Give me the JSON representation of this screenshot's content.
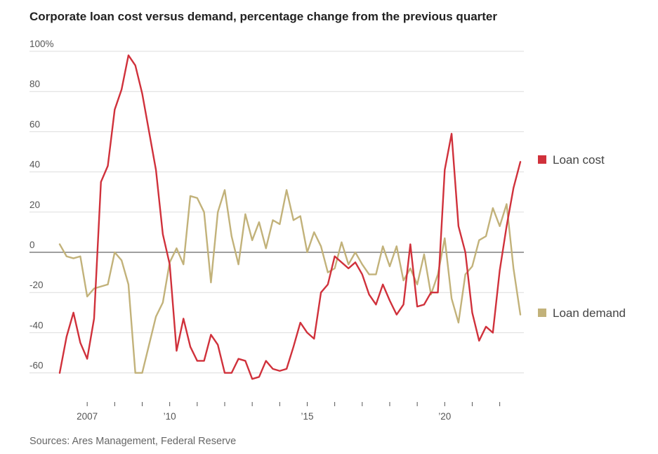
{
  "title": "Corporate loan cost versus demand, percentage change from the previous quarter",
  "source": "Sources: Ares Management, Federal Reserve",
  "colors": {
    "loan_cost": "#d0313b",
    "loan_demand": "#c2b27a",
    "grid": "#dddddd",
    "zero": "#666666"
  },
  "chart_data": {
    "type": "line",
    "title": "Corporate loan cost versus demand, percentage change from the previous quarter",
    "ylim": [
      -70,
      100
    ],
    "y_ticks": [
      100,
      80,
      60,
      40,
      20,
      0,
      -20,
      -40,
      -60
    ],
    "y_tick_labels": [
      "100%",
      "80",
      "60",
      "40",
      "20",
      "0",
      "-20",
      "-40",
      "-60"
    ],
    "x_tick_labels": [
      {
        "x": 2007.0,
        "label": "2007"
      },
      {
        "x": 2010.0,
        "label": "’10"
      },
      {
        "x": 2015.0,
        "label": "’15"
      },
      {
        "x": 2020.0,
        "label": "’20"
      }
    ],
    "x_minor_ticks": [
      2008,
      2009,
      2011,
      2012,
      2013,
      2014,
      2016,
      2017,
      2018,
      2019,
      2021,
      2022
    ],
    "xlim": [
      2005.0,
      2023.0
    ],
    "grid": true,
    "legend_position": "right",
    "series": [
      {
        "name": "Loan cost",
        "x": [
          2006.0,
          2006.25,
          2006.5,
          2006.75,
          2007.0,
          2007.25,
          2007.5,
          2007.75,
          2008.0,
          2008.25,
          2008.5,
          2008.75,
          2009.0,
          2009.25,
          2009.5,
          2009.75,
          2010.0,
          2010.25,
          2010.5,
          2010.75,
          2011.0,
          2011.25,
          2011.5,
          2011.75,
          2012.0,
          2012.25,
          2012.5,
          2012.75,
          2013.0,
          2013.25,
          2013.5,
          2013.75,
          2014.0,
          2014.25,
          2014.5,
          2014.75,
          2015.0,
          2015.25,
          2015.5,
          2015.75,
          2016.0,
          2016.25,
          2016.5,
          2016.75,
          2017.0,
          2017.25,
          2017.5,
          2017.75,
          2018.0,
          2018.25,
          2018.5,
          2018.75,
          2019.0,
          2019.25,
          2019.5,
          2019.75,
          2020.0,
          2020.25,
          2020.5,
          2020.75,
          2021.0,
          2021.25,
          2021.5,
          2021.75,
          2022.0,
          2022.25,
          2022.5,
          2022.75
        ],
        "values": [
          -60,
          -42,
          -30,
          -45,
          -53,
          -33,
          35,
          43,
          71,
          81,
          98,
          93,
          79,
          60,
          41,
          9,
          -6,
          -49,
          -33,
          -47,
          -54,
          -54,
          -41,
          -46,
          -60,
          -60,
          -53,
          -54,
          -63,
          -62,
          -54,
          -58,
          -59,
          -58,
          -47,
          -35,
          -40,
          -43,
          -20,
          -16,
          -2,
          -5,
          -8,
          -5,
          -11,
          -21,
          -26,
          -16,
          -24,
          -31,
          -26,
          4,
          -27,
          -26,
          -20,
          -20,
          41,
          59,
          13,
          0,
          -30,
          -44,
          -37,
          -40,
          -9,
          13,
          32,
          45
        ]
      },
      {
        "name": "Loan demand",
        "x": [
          2006.0,
          2006.25,
          2006.5,
          2006.75,
          2007.0,
          2007.25,
          2007.5,
          2007.75,
          2008.0,
          2008.25,
          2008.5,
          2008.75,
          2009.0,
          2009.25,
          2009.5,
          2009.75,
          2010.0,
          2010.25,
          2010.5,
          2010.75,
          2011.0,
          2011.25,
          2011.5,
          2011.75,
          2012.0,
          2012.25,
          2012.5,
          2012.75,
          2013.0,
          2013.25,
          2013.5,
          2013.75,
          2014.0,
          2014.25,
          2014.5,
          2014.75,
          2015.0,
          2015.25,
          2015.5,
          2015.75,
          2016.0,
          2016.25,
          2016.5,
          2016.75,
          2017.0,
          2017.25,
          2017.5,
          2017.75,
          2018.0,
          2018.25,
          2018.5,
          2018.75,
          2019.0,
          2019.25,
          2019.5,
          2019.75,
          2020.0,
          2020.25,
          2020.5,
          2020.75,
          2021.0,
          2021.25,
          2021.5,
          2021.75,
          2022.0,
          2022.25,
          2022.5,
          2022.75
        ],
        "values": [
          4,
          -2,
          -3,
          -2,
          -22,
          -18,
          -17,
          -16,
          0,
          -4,
          -16,
          -60,
          -60,
          -46,
          -32,
          -25,
          -5,
          2,
          -6,
          28,
          27,
          20,
          -15,
          20,
          31,
          8,
          -6,
          19,
          6,
          15,
          2,
          16,
          14,
          31,
          16,
          18,
          0,
          10,
          3,
          -10,
          -8,
          5,
          -6,
          0,
          -6,
          -11,
          -11,
          3,
          -7,
          3,
          -14,
          -8,
          -16,
          -1,
          -21,
          -11,
          7,
          -23,
          -35,
          -11,
          -7,
          6,
          8,
          22,
          13,
          24,
          -8,
          -31
        ]
      }
    ]
  },
  "legend": [
    {
      "label": "Loan cost",
      "color_key": "loan_cost"
    },
    {
      "label": "Loan demand",
      "color_key": "loan_demand"
    }
  ]
}
